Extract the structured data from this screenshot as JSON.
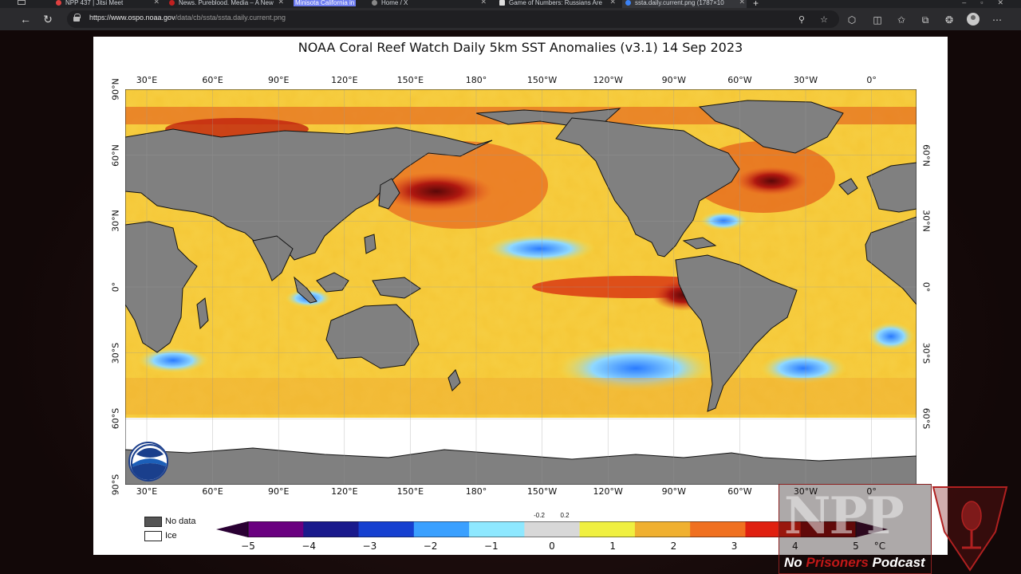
{
  "browser": {
    "tabs": [
      {
        "label": "NPP 437 | Jitsi Meet",
        "active": false,
        "favicon_color": "#e04040"
      },
      {
        "label": "News. Pureblood. Media – A New",
        "active": false,
        "favicon_color": "#c02020"
      },
      {
        "label": "Minisota California in",
        "active": false,
        "highlighted": true,
        "favicon_color": "#6d7cf0"
      },
      {
        "label": "Home / X",
        "active": false,
        "favicon_color": "#888888"
      },
      {
        "label": "Game of Numbers: Russians Are",
        "active": false,
        "favicon_color": "#dddddd"
      },
      {
        "label": "ssta.daily.current.png (1787×10",
        "active": true,
        "favicon_color": "#3b82f6"
      }
    ],
    "url_domain": "https://www.ospo.noaa.gov",
    "url_path": "/data/cb/ssta/ssta.daily.current.png",
    "new_tab": "+",
    "window_controls": "–▫✕"
  },
  "figure": {
    "title": "NOAA Coral Reef Watch Daily 5km SST Anomalies  (v3.1)   14 Sep 2023",
    "lon_labels": [
      "30°E",
      "60°E",
      "90°E",
      "120°E",
      "150°E",
      "180°",
      "150°W",
      "120°W",
      "90°W",
      "60°W",
      "30°W",
      "0°"
    ],
    "lat_labels_left": [
      "90°N",
      "60°N",
      "30°N",
      "0°",
      "30°S",
      "60°S",
      "90°S"
    ],
    "lat_labels_right": [
      "60°N",
      "30°N",
      "0°",
      "30°S",
      "60°S"
    ],
    "legend_key": [
      {
        "label": "No data",
        "color": "#555555"
      },
      {
        "label": "Ice",
        "color": "#ffffff"
      }
    ],
    "colorbar": {
      "ticks": [
        "−5",
        "−4",
        "−3",
        "−2",
        "−1",
        "0",
        "1",
        "2",
        "3",
        "4",
        "5"
      ],
      "small_ticks": [
        "-0.2",
        "0.2"
      ],
      "unit": "°C",
      "colors": [
        "#2a0033",
        "#6a0080",
        "#1a1a8c",
        "#1640d0",
        "#3aa0ff",
        "#8ee8ff",
        "#d8d8d8",
        "#f0f040",
        "#f0b030",
        "#f07020",
        "#e02010",
        "#8a0a0a",
        "#3a0a2a"
      ]
    },
    "logo_text": "NOAA"
  },
  "watermark": {
    "letters": "NPP",
    "tag_a": "No ",
    "tag_b": "Prisoners",
    "tag_c": " Podcast"
  }
}
